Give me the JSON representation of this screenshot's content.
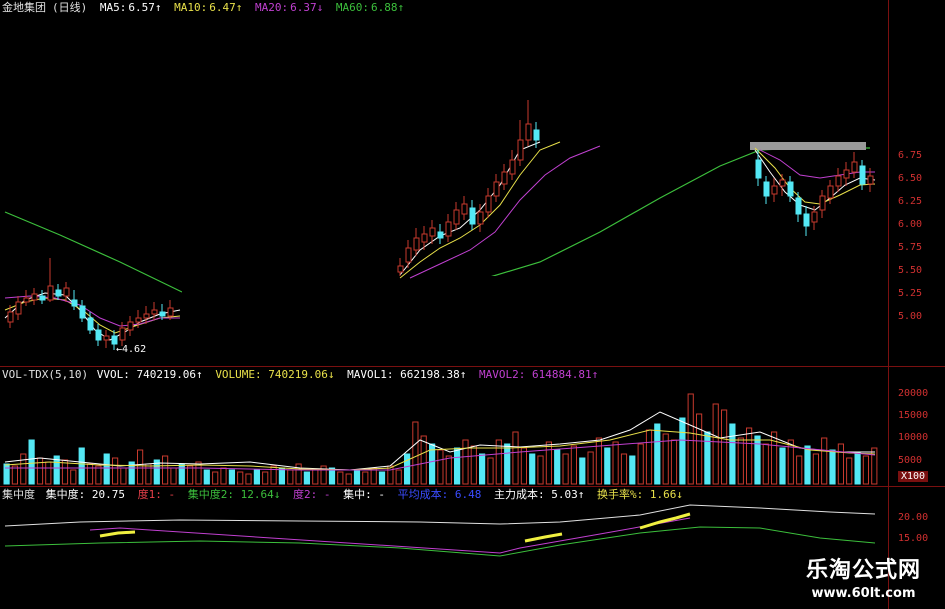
{
  "price_header": {
    "stock_name": "金地集团",
    "period": "(日线)",
    "ma5_label": "MA5:",
    "ma5_value": "6.57↑",
    "ma10_label": "MA10:",
    "ma10_value": "6.47↑",
    "ma20_label": "MA20:",
    "ma20_value": "6.37↓",
    "ma60_label": "MA60:",
    "ma60_value": "6.88↑"
  },
  "price_axis": [
    "6.75",
    "6.50",
    "6.25",
    "6.00",
    "5.75",
    "5.50",
    "5.25",
    "5.00"
  ],
  "low_marker": "←4.62",
  "vol_header": {
    "indicator": "VOL-TDX(5,10)",
    "vvol": "VVOL: 740219.06↑",
    "volume": "VOLUME: 740219.06↓",
    "mavol1": "MAVOL1: 662198.38↑",
    "mavol2": "MAVOL2: 614884.81↑"
  },
  "vol_axis": [
    "20000",
    "15000",
    "10000",
    "5000"
  ],
  "vol_unit": "X100",
  "conc_header": {
    "name": "集中度",
    "c1": "集中度: 20.75",
    "c2": "度1: -",
    "c3": "集中度2: 12.64↓",
    "c4": "度2: -",
    "c5": "集中: -",
    "c6": "平均成本: 6.48",
    "c7": "主力成本: 5.03↑",
    "c8": "换手率%: 1.66↓"
  },
  "conc_axis": [
    "20.00",
    "15.00"
  ],
  "watermark": {
    "site": "乐淘公式网",
    "url": "www.60lt.com"
  },
  "colors": {
    "up": "#c83a2e",
    "down": "#54e8f5",
    "ma5": "#ffffff",
    "ma10": "#e8e04a",
    "ma20": "#c040d0",
    "ma60": "#3cbf3c",
    "grid": "#7a1010"
  }
}
